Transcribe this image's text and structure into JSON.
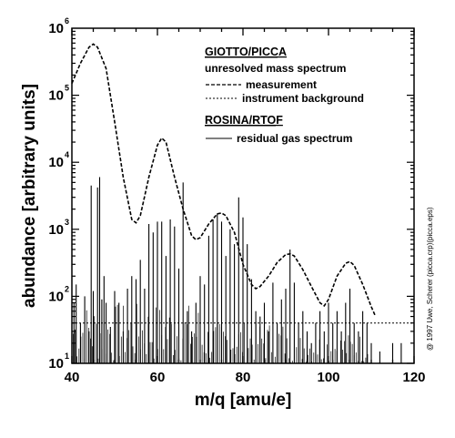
{
  "chart_data": {
    "type": "line",
    "title": "",
    "xlabel": "m/q  [amu/e]",
    "ylabel": "abundance  [arbitrary units]",
    "xlim": [
      40,
      120
    ],
    "ylim": [
      10,
      1000000
    ],
    "yscale": "log",
    "grid": false,
    "x_ticks": [
      40,
      60,
      80,
      100,
      120
    ],
    "y_ticks": [
      {
        "value": 10,
        "base": "10",
        "exp": "1"
      },
      {
        "value": 100,
        "base": "10",
        "exp": "2"
      },
      {
        "value": 1000,
        "base": "10",
        "exp": "3"
      },
      {
        "value": 10000,
        "base": "10",
        "exp": "4"
      },
      {
        "value": 100000,
        "base": "10",
        "exp": "5"
      },
      {
        "value": 1000000,
        "base": "10",
        "exp": "6"
      }
    ],
    "legend_position": "top-right",
    "legend": {
      "group1_title": "GIOTTO/PICCA",
      "group1_subtitle": "unresolved mass spectrum",
      "measurement_label": "measurement",
      "background_label": "instrument background",
      "group2_title": "ROSINA/RTOF",
      "residual_label": "residual gas spectrum"
    },
    "credit": "@ 1997 Uwe, Scherer (picca.crp)(picca.eps)",
    "series": [
      {
        "name": "measurement",
        "style": "dashed",
        "x": [
          40,
          42,
          44,
          45,
          46,
          48,
          50,
          52,
          54,
          55,
          56,
          58,
          60,
          61,
          62,
          64,
          66,
          68,
          69,
          70,
          72,
          74,
          75,
          76,
          78,
          80,
          82,
          83,
          84,
          86,
          88,
          90,
          91,
          92,
          94,
          96,
          98,
          99,
          100,
          102,
          104,
          105,
          106,
          108,
          110,
          111
        ],
        "values": [
          150000,
          300000,
          520000,
          580000,
          520000,
          250000,
          40000,
          6000,
          1400,
          1250,
          1600,
          6000,
          18000,
          23000,
          20000,
          6000,
          2000,
          800,
          700,
          750,
          1200,
          1700,
          1750,
          1600,
          900,
          300,
          150,
          130,
          140,
          200,
          320,
          420,
          430,
          400,
          250,
          140,
          80,
          72,
          90,
          200,
          310,
          330,
          290,
          150,
          70,
          50
        ]
      },
      {
        "name": "instrument background",
        "style": "dotted",
        "x": [
          40,
          120
        ],
        "values": [
          40,
          40
        ]
      },
      {
        "name": "residual gas spectrum",
        "style": "solid",
        "x": [
          40.5,
          41,
          42,
          43,
          44,
          44.5,
          45,
          46,
          46.5,
          47,
          47.5,
          48,
          49,
          50,
          51,
          52,
          53,
          54,
          55,
          56,
          57,
          58,
          59,
          60,
          61,
          62,
          63,
          64,
          65,
          66,
          67,
          68,
          69,
          70,
          71,
          72,
          73,
          74,
          75,
          76,
          77,
          78,
          79,
          80,
          81,
          82,
          83,
          84,
          85,
          86,
          87,
          88,
          89,
          90,
          91,
          92,
          93,
          94,
          95,
          96,
          97,
          98,
          99,
          100,
          101,
          102,
          103,
          104,
          105,
          106,
          107,
          108,
          109,
          110,
          112,
          115,
          117
        ],
        "values": [
          80,
          150,
          40,
          100,
          30,
          4500,
          120,
          4200,
          6000,
          90,
          200,
          80,
          35,
          120,
          80,
          30,
          130,
          200,
          180,
          350,
          130,
          1200,
          900,
          1300,
          1300,
          400,
          1400,
          1100,
          260,
          5000,
          60,
          30,
          80,
          200,
          150,
          800,
          1400,
          1700,
          1300,
          400,
          1000,
          600,
          3000,
          1500,
          600,
          180,
          60,
          50,
          80,
          30,
          160,
          40,
          90,
          130,
          500,
          160,
          40,
          60,
          30,
          20,
          40,
          60,
          30,
          80,
          40,
          60,
          30,
          80,
          130,
          40,
          30,
          60,
          40,
          20,
          15,
          20,
          20
        ]
      }
    ]
  }
}
